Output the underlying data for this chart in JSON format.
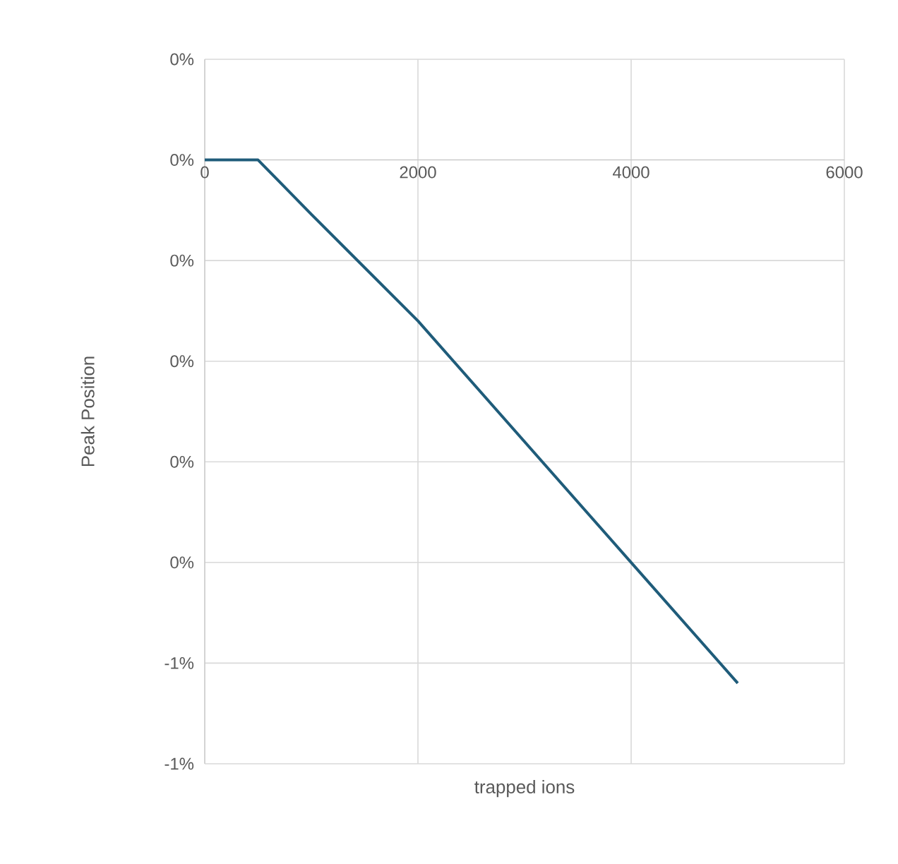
{
  "chart_data": {
    "type": "line",
    "xlabel": "trapped ions",
    "ylabel": "Peak Position",
    "x": [
      0,
      500,
      1000,
      2000,
      3000,
      4000,
      5000
    ],
    "series": [
      {
        "color": "#1f5c7a",
        "values": [
          0,
          0,
          -0.054,
          -0.16,
          -0.28,
          -0.4,
          -0.52
        ]
      }
    ],
    "xlim": [
      0,
      6000
    ],
    "xticks": [
      0,
      2000,
      4000,
      6000
    ],
    "ylim": [
      -0.6,
      0.1
    ],
    "yticks": [
      {
        "value": 0.1,
        "label": "0%"
      },
      {
        "value": 0,
        "label": "0%"
      },
      {
        "value": -0.1,
        "label": "0%"
      },
      {
        "value": -0.2,
        "label": "0%"
      },
      {
        "value": -0.3,
        "label": "0%"
      },
      {
        "value": -0.4,
        "label": "0%"
      },
      {
        "value": -0.5,
        "label": "-1%"
      },
      {
        "value": -0.6,
        "label": "-1%"
      }
    ],
    "grid": true,
    "marker": "none",
    "line_style": "solid"
  }
}
